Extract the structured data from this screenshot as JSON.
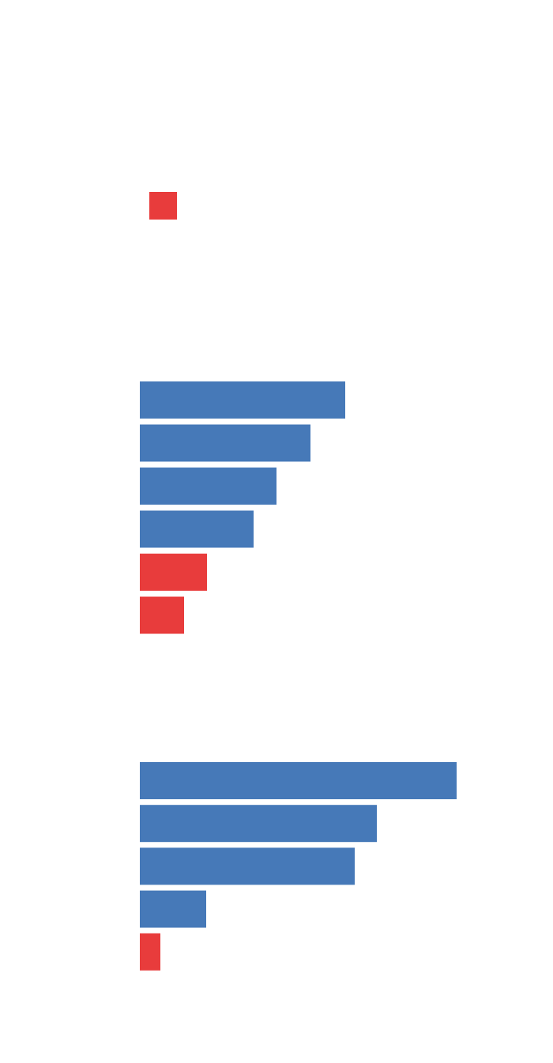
{
  "chart_data": [
    {
      "type": "bar",
      "orientation": "horizontal",
      "values": [
        260,
        216,
        173,
        144,
        85,
        56
      ],
      "colors": [
        "#4679b8",
        "#4679b8",
        "#4679b8",
        "#4679b8",
        "#e83c3c",
        "#e83c3c"
      ],
      "xlim": [
        0,
        420
      ]
    },
    {
      "type": "bar",
      "orientation": "horizontal",
      "values": [
        401,
        300,
        272,
        84,
        26
      ],
      "colors": [
        "#4679b8",
        "#4679b8",
        "#4679b8",
        "#4679b8",
        "#e83c3c"
      ],
      "xlim": [
        0,
        420
      ]
    }
  ]
}
